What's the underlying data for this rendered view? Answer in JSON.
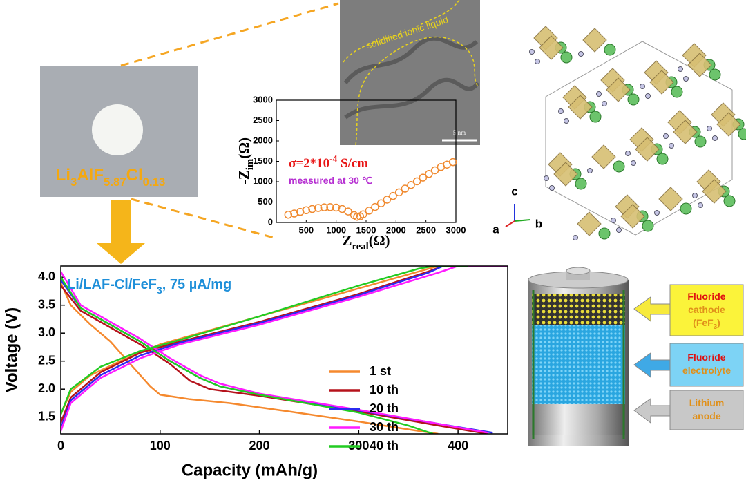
{
  "photo": {
    "label": [
      "Li",
      "3",
      "AlF",
      "5.87",
      "Cl",
      "0.13"
    ]
  },
  "tem": {
    "label": "solidified ionic liquid",
    "scale_bar": "5 nm"
  },
  "crystal": {
    "axes": [
      "c",
      "a",
      "b"
    ]
  },
  "cell": {
    "cathode": [
      "Fluoride",
      "cathode",
      "(FeF",
      "3",
      ")"
    ],
    "electrolyte": [
      "Fluoride",
      "electrolyte"
    ],
    "anode": [
      "Lithium",
      "anode"
    ]
  },
  "chart_data": [
    {
      "type": "scatter",
      "x_label": [
        "Z",
        "real",
        "(Ω)"
      ],
      "y_label": [
        "-Z",
        "im",
        "(Ω)"
      ],
      "annotations": [
        [
          "σ=2*10",
          "-4",
          " S/cm"
        ],
        [
          "measured at 30 ℃"
        ]
      ],
      "color": "#f08a30",
      "x": [
        200,
        300,
        400,
        500,
        600,
        700,
        800,
        900,
        1000,
        1100,
        1200,
        1300,
        1350,
        1400,
        1450,
        1550,
        1650,
        1750,
        1850,
        1950,
        2050,
        2150,
        2250,
        2350,
        2450,
        2550,
        2650,
        2750,
        2850,
        2950
      ],
      "values": [
        190,
        220,
        260,
        300,
        330,
        355,
        370,
        375,
        365,
        330,
        270,
        180,
        140,
        150,
        200,
        290,
        380,
        470,
        560,
        650,
        740,
        830,
        920,
        1010,
        1100,
        1190,
        1280,
        1360,
        1420,
        1480
      ],
      "xlim": [
        0,
        3000
      ],
      "ylim": [
        0,
        3000
      ],
      "xticks": [
        500,
        1000,
        1500,
        2000,
        2500,
        3000
      ],
      "yticks": [
        0,
        500,
        1000,
        1500,
        2000,
        2500,
        3000
      ]
    },
    {
      "type": "line",
      "title": [
        "Li/LAF-Cl/FeF",
        "3",
        ", 75 µA/mg"
      ],
      "x_label": "Capacity (mAh/g)",
      "y_label": "Voltage (V)",
      "xlim": [
        0,
        450
      ],
      "ylim": [
        1.2,
        4.2
      ],
      "xticks": [
        0,
        100,
        200,
        300,
        400
      ],
      "yticks": [
        1.5,
        {
          "value": 2,
          "label": "2.0"
        },
        2.5,
        {
          "value": 3,
          "label": "3.0"
        },
        3.5,
        {
          "value": 4,
          "label": "4.0"
        }
      ],
      "legend": "center right",
      "series": [
        {
          "name": "1 st",
          "color": "#f5892e",
          "x": [
            0,
            10,
            30,
            50,
            70,
            90,
            100,
            130,
            170,
            230,
            300,
            350,
            380,
            null,
            0,
            10,
            30,
            60,
            100,
            150,
            200,
            250,
            300,
            350,
            380,
            440
          ],
          "values": [
            3.9,
            3.5,
            3.15,
            2.85,
            2.45,
            2.05,
            1.9,
            1.82,
            1.75,
            1.6,
            1.42,
            1.28,
            1.2,
            null,
            1.55,
            1.95,
            2.25,
            2.5,
            2.8,
            3.05,
            3.3,
            3.55,
            3.8,
            4.05,
            4.2,
            4.2
          ]
        },
        {
          "name": "10 th",
          "color": "#b5121b",
          "x": [
            0,
            20,
            50,
            80,
            110,
            130,
            150,
            200,
            300,
            380,
            430,
            null,
            0,
            10,
            40,
            80,
            120,
            200,
            300,
            370,
            385,
            405
          ],
          "values": [
            3.85,
            3.4,
            3.1,
            2.8,
            2.45,
            2.15,
            2.0,
            1.88,
            1.6,
            1.35,
            1.2,
            null,
            1.4,
            1.85,
            2.3,
            2.65,
            2.85,
            3.2,
            3.7,
            4.1,
            4.2,
            4.2
          ]
        },
        {
          "name": "20 th",
          "color": "#2b2bf0",
          "x": [
            0,
            20,
            50,
            80,
            110,
            140,
            160,
            200,
            300,
            380,
            435,
            null,
            0,
            10,
            40,
            80,
            120,
            200,
            300,
            370,
            385,
            405
          ],
          "values": [
            3.95,
            3.45,
            3.15,
            2.85,
            2.5,
            2.2,
            2.05,
            1.9,
            1.62,
            1.38,
            1.22,
            null,
            1.3,
            1.8,
            2.25,
            2.6,
            2.83,
            3.18,
            3.68,
            4.08,
            4.2,
            4.2
          ]
        },
        {
          "name": "30 th",
          "color": "#ff1aff",
          "x": [
            0,
            20,
            50,
            80,
            110,
            140,
            160,
            200,
            300,
            380,
            430,
            null,
            0,
            10,
            40,
            80,
            120,
            200,
            300,
            380,
            400,
            450
          ],
          "values": [
            4.1,
            3.5,
            3.2,
            2.9,
            2.55,
            2.25,
            2.1,
            1.92,
            1.63,
            1.38,
            1.22,
            null,
            1.25,
            1.75,
            2.2,
            2.55,
            2.8,
            3.15,
            3.65,
            4.08,
            4.2,
            4.2
          ]
        },
        {
          "name": "40 th",
          "color": "#22cc22",
          "x": [
            0,
            20,
            50,
            80,
            110,
            140,
            160,
            200,
            300,
            350,
            375,
            null,
            0,
            10,
            40,
            80,
            120,
            200,
            300,
            360,
            375,
            410
          ],
          "values": [
            4.0,
            3.45,
            3.15,
            2.85,
            2.5,
            2.2,
            2.05,
            1.9,
            1.58,
            1.35,
            1.2,
            null,
            1.55,
            2.0,
            2.4,
            2.68,
            2.88,
            3.3,
            3.85,
            4.15,
            4.2,
            4.2
          ]
        }
      ]
    }
  ]
}
